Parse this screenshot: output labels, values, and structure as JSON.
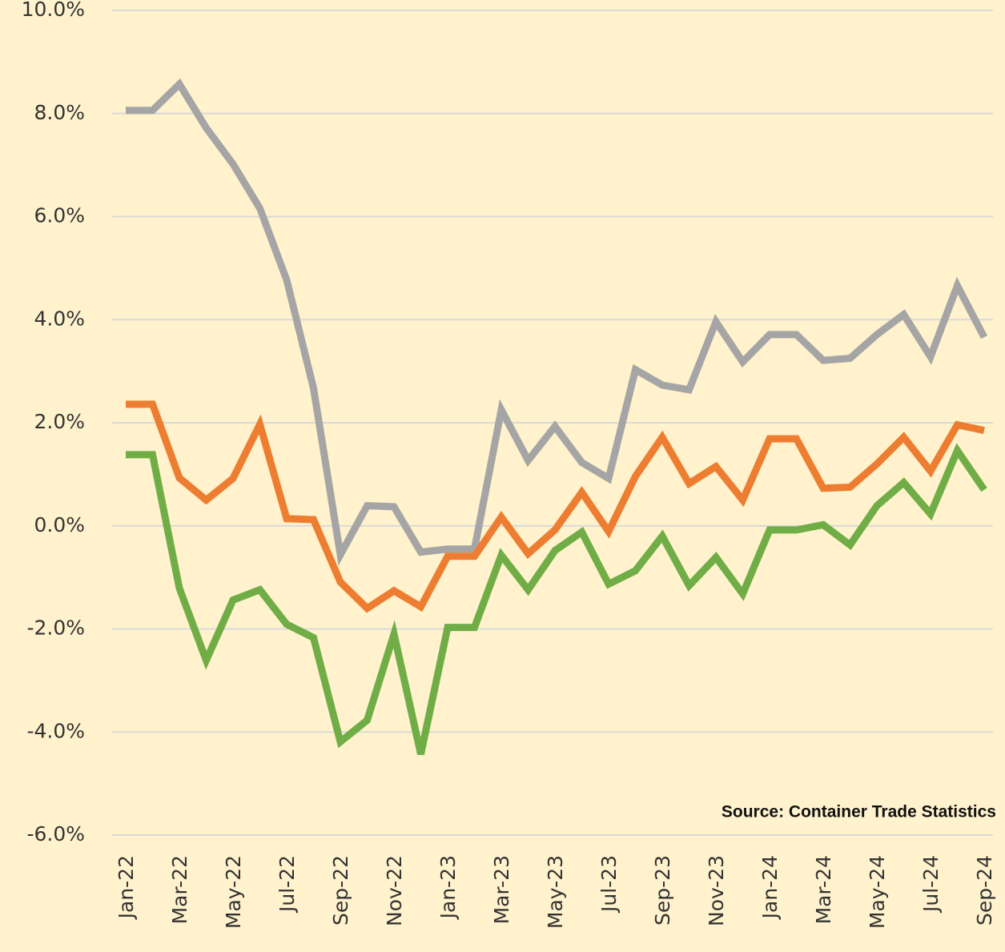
{
  "chart_data": {
    "type": "line",
    "categories": [
      "Jan-22",
      null,
      "Mar-22",
      null,
      "May-22",
      null,
      "Jul-22",
      null,
      "Sep-22",
      null,
      "Nov-22",
      null,
      "Jan-23",
      null,
      "Mar-23",
      null,
      "May-23",
      null,
      "Jul-23",
      null,
      "Sep-23",
      null,
      "Nov-23",
      null,
      "Jan-24",
      null,
      "Mar-24",
      null,
      "May-24",
      null,
      "Jul-24",
      null,
      "Sep-24"
    ],
    "series": [
      {
        "color": "#a5a5a5",
        "values": [
          8.06,
          8.06,
          8.57,
          7.72,
          7.02,
          6.16,
          4.77,
          2.67,
          -0.56,
          0.39,
          0.37,
          -0.51,
          -0.45,
          -0.45,
          2.25,
          1.27,
          1.93,
          1.23,
          0.92,
          3.03,
          2.73,
          2.64,
          3.96,
          3.18,
          3.71,
          3.71,
          3.21,
          3.25,
          3.71,
          4.1,
          3.28,
          4.66,
          3.66
        ]
      },
      {
        "color": "#ed7d31",
        "values": [
          2.36,
          2.36,
          0.93,
          0.5,
          0.92,
          1.97,
          0.14,
          0.12,
          -1.09,
          -1.6,
          -1.26,
          -1.57,
          -0.59,
          -0.59,
          0.17,
          -0.54,
          -0.08,
          0.65,
          -0.11,
          0.96,
          1.72,
          0.82,
          1.15,
          0.5,
          1.69,
          1.69,
          0.73,
          0.75,
          1.2,
          1.72,
          1.06,
          1.96,
          1.85
        ]
      },
      {
        "color": "#70ad47",
        "values": [
          1.38,
          1.38,
          -1.21,
          -2.61,
          -1.44,
          -1.24,
          -1.91,
          -2.17,
          -4.19,
          -3.77,
          -2.1,
          -4.43,
          -1.97,
          -1.97,
          -0.57,
          -1.24,
          -0.48,
          -0.12,
          -1.13,
          -0.87,
          -0.2,
          -1.16,
          -0.61,
          -1.32,
          -0.08,
          -0.08,
          0.02,
          -0.37,
          0.39,
          0.84,
          0.23,
          1.46,
          0.7
        ]
      }
    ],
    "ylim": [
      -6,
      10
    ],
    "yticks": [
      {
        "value": -6,
        "label": "-6.0%"
      },
      {
        "value": -4,
        "label": "-4.0%"
      },
      {
        "value": -2,
        "label": "-2.0%"
      },
      {
        "value": 0,
        "label": "0.0%"
      },
      {
        "value": 2,
        "label": "2.0%"
      },
      {
        "value": 4,
        "label": "4.0%"
      },
      {
        "value": 6,
        "label": "6.0%"
      },
      {
        "value": 8,
        "label": "8.0%"
      },
      {
        "value": 10,
        "label": "10.0%"
      }
    ],
    "grid": true,
    "annotation": "Source: Container Trade Statistics"
  }
}
